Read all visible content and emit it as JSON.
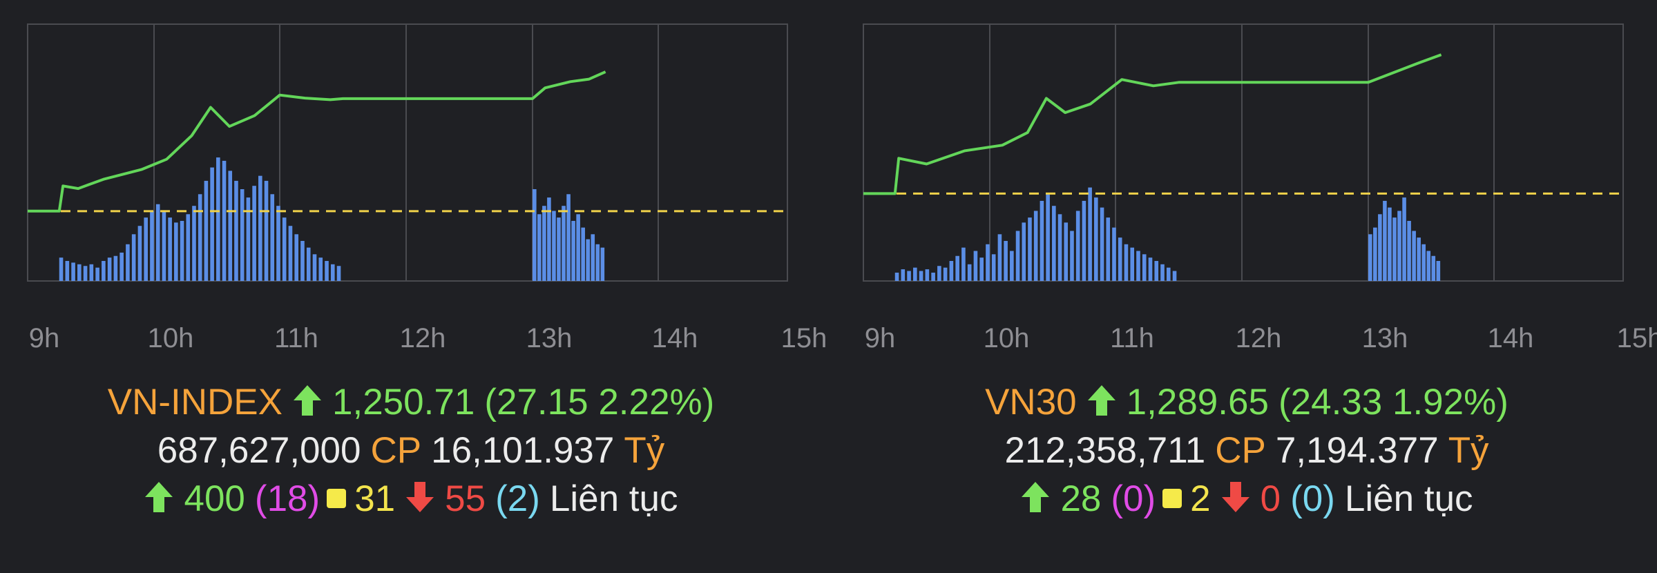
{
  "chart_data": [
    {
      "type": "line",
      "x_ticks": [
        "9h",
        "10h",
        "11h",
        "12h",
        "13h",
        "14h",
        "15h"
      ],
      "x_range_hours": [
        9,
        15
      ],
      "reference_line": "dashed",
      "line_series": [
        {
          "x": 9.0,
          "y": 1223.6
        },
        {
          "x": 9.25,
          "y": 1223.6
        },
        {
          "x": 9.28,
          "y": 1228.5
        },
        {
          "x": 9.4,
          "y": 1228.0
        },
        {
          "x": 9.6,
          "y": 1229.8
        },
        {
          "x": 9.9,
          "y": 1231.7
        },
        {
          "x": 10.1,
          "y": 1233.7
        },
        {
          "x": 10.3,
          "y": 1238.3
        },
        {
          "x": 10.45,
          "y": 1243.8
        },
        {
          "x": 10.6,
          "y": 1240.1
        },
        {
          "x": 10.8,
          "y": 1242.2
        },
        {
          "x": 11.0,
          "y": 1246.2
        },
        {
          "x": 11.2,
          "y": 1245.6
        },
        {
          "x": 11.4,
          "y": 1245.3
        },
        {
          "x": 11.5,
          "y": 1245.5
        },
        {
          "x": 13.0,
          "y": 1245.5
        },
        {
          "x": 13.1,
          "y": 1247.6
        },
        {
          "x": 13.3,
          "y": 1248.8
        },
        {
          "x": 13.45,
          "y": 1249.3
        },
        {
          "x": 13.58,
          "y": 1250.71
        }
      ],
      "y_range": [
        1210,
        1260
      ],
      "volume": {
        "morning": [
          14,
          12,
          11,
          10,
          9,
          10,
          8,
          12,
          14,
          15,
          17,
          22,
          28,
          33,
          38,
          42,
          46,
          42,
          38,
          35,
          36,
          40,
          45,
          52,
          60,
          68,
          74,
          72,
          66,
          60,
          55,
          50,
          57,
          63,
          60,
          52,
          45,
          38,
          33,
          28,
          24,
          20,
          16,
          14,
          12,
          10,
          9
        ],
        "afternoon": [
          55,
          40,
          45,
          50,
          42,
          38,
          45,
          52,
          36,
          40,
          32,
          25,
          28,
          22,
          20
        ]
      }
    },
    {
      "type": "line",
      "x_ticks": [
        "9h",
        "10h",
        "11h",
        "12h",
        "13h",
        "14h",
        "15h"
      ],
      "x_range_hours": [
        9,
        15
      ],
      "reference_line": "dashed",
      "line_series": [
        {
          "x": 9.0,
          "y": 1265.32
        },
        {
          "x": 9.25,
          "y": 1265.32
        },
        {
          "x": 9.28,
          "y": 1271.5
        },
        {
          "x": 9.5,
          "y": 1270.5
        },
        {
          "x": 9.8,
          "y": 1272.8
        },
        {
          "x": 10.1,
          "y": 1273.8
        },
        {
          "x": 10.3,
          "y": 1276.0
        },
        {
          "x": 10.45,
          "y": 1282.0
        },
        {
          "x": 10.6,
          "y": 1279.5
        },
        {
          "x": 10.8,
          "y": 1281.0
        },
        {
          "x": 11.05,
          "y": 1285.3
        },
        {
          "x": 11.3,
          "y": 1284.2
        },
        {
          "x": 11.5,
          "y": 1284.8
        },
        {
          "x": 13.0,
          "y": 1284.8
        },
        {
          "x": 13.2,
          "y": 1286.5
        },
        {
          "x": 13.4,
          "y": 1288.2
        },
        {
          "x": 13.58,
          "y": 1289.65
        }
      ],
      "y_range": [
        1250,
        1295
      ],
      "volume": {
        "morning": [
          5,
          7,
          6,
          8,
          6,
          7,
          5,
          9,
          8,
          12,
          15,
          20,
          10,
          18,
          14,
          22,
          16,
          28,
          24,
          18,
          30,
          35,
          38,
          42,
          48,
          52,
          45,
          40,
          35,
          30,
          42,
          48,
          56,
          50,
          44,
          38,
          32,
          26,
          22,
          20,
          18,
          16,
          14,
          12,
          10,
          8,
          6
        ],
        "afternoon": [
          28,
          32,
          40,
          48,
          44,
          38,
          42,
          50,
          36,
          30,
          26,
          22,
          18,
          15,
          12
        ]
      }
    }
  ],
  "indexes": [
    {
      "name": "VN-INDEX",
      "value": "1,250.71",
      "change": "(27.15 2.22%)",
      "volume": "687,627,000",
      "volume_unit": "CP",
      "turnover": "16,101.937",
      "turnover_unit": "Tỷ",
      "advances": "400",
      "advances_ceiling": "(18)",
      "unchanged": "31",
      "declines": "55",
      "declines_floor": "(2)",
      "session": "Liên tục"
    },
    {
      "name": "VN30",
      "value": "1,289.65",
      "change": "(24.33 1.92%)",
      "volume": "212,358,711",
      "volume_unit": "CP",
      "turnover": "7,194.377",
      "turnover_unit": "Tỷ",
      "advances": "28",
      "advances_ceiling": "(0)",
      "unchanged": "2",
      "declines": "0",
      "declines_floor": "(0)",
      "session": "Liên tục"
    }
  ],
  "colors": {
    "background": "#1f2024",
    "price_line": "#63d65a",
    "volume_bar": "#5b8ee6",
    "reference": "#f0d24a",
    "grid": "#4a4b50",
    "up": "#7de35e",
    "down": "#ef4a45",
    "name": "#f5a33b"
  },
  "icons": [
    "arrow-up-icon",
    "arrow-down-icon",
    "unchanged-square-icon"
  ]
}
